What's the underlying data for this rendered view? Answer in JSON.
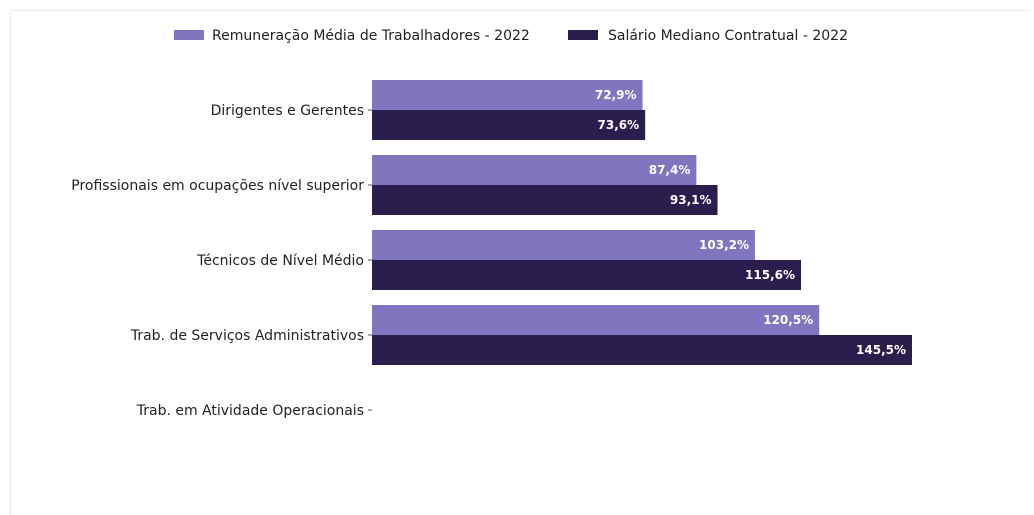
{
  "chart_data": {
    "type": "bar",
    "orientation": "horizontal",
    "categories": [
      "Dirigentes e Gerentes",
      "Profissionais em ocupações nível superior",
      "Técnicos de Nível Médio",
      "Trab. de Serviços Administrativos",
      "Trab. em Atividade Operacionais"
    ],
    "series": [
      {
        "name": "Remuneração Média de Trabalhadores - 2022",
        "color": "#7f76bf",
        "values": [
          72.9,
          87.4,
          103.2,
          120.5,
          null
        ],
        "labels": [
          "72,9%",
          "87,4%",
          "103,2%",
          "120,5%",
          ""
        ]
      },
      {
        "name": "Salário Mediano Contratual - 2022",
        "color": "#2b1e4e",
        "values": [
          73.6,
          93.1,
          115.6,
          145.5,
          null
        ],
        "labels": [
          "73,6%",
          "93,1%",
          "115,6%",
          "145,5%",
          ""
        ]
      }
    ],
    "xlim": [
      0,
      145.5
    ],
    "grid": false,
    "legend_position": "top-center",
    "xaxis_visible": false
  }
}
